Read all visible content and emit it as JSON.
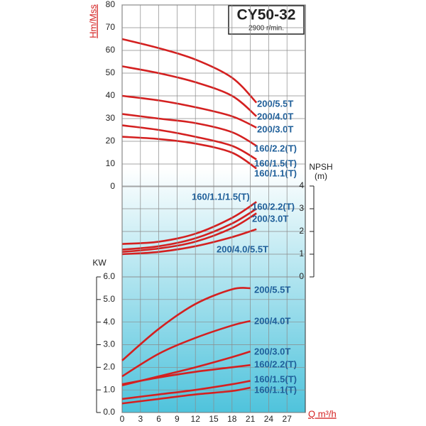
{
  "chart_data": [
    {
      "type": "line",
      "title": "CY50-32",
      "subtitle": "2900 r/min.",
      "y_label": "Hm/Mss",
      "xlim": [
        0,
        30
      ],
      "ylim": [
        0,
        80
      ],
      "yticks": [
        0,
        10,
        20,
        30,
        40,
        50,
        60,
        70,
        80
      ],
      "x": [
        0,
        6,
        12,
        18,
        22
      ],
      "series": [
        {
          "name": "200/5.5T",
          "color": "#d42020",
          "values": [
            65,
            61,
            56,
            48,
            37
          ]
        },
        {
          "name": "200/4.0T",
          "color": "#d42020",
          "values": [
            53,
            50,
            46,
            40,
            31
          ]
        },
        {
          "name": "200/3.0T",
          "color": "#d42020",
          "values": [
            40,
            38,
            35,
            31,
            26
          ]
        },
        {
          "name": "160/2.2(T)",
          "color": "#d42020",
          "values": [
            32,
            30,
            28,
            24,
            18
          ]
        },
        {
          "name": "160/1.5(T)",
          "color": "#d42020",
          "values": [
            27,
            25,
            22,
            18,
            12
          ]
        },
        {
          "name": "160/1.1(T)",
          "color": "#d42020",
          "values": [
            22,
            21,
            19,
            15,
            8
          ]
        }
      ]
    },
    {
      "type": "line",
      "y2_label": "NPSH",
      "y2_unit": "(m)",
      "xlim": [
        0,
        30
      ],
      "y2lim": [
        0,
        4
      ],
      "y2ticks": [
        0,
        1,
        2,
        3,
        4
      ],
      "x": [
        0,
        6,
        12,
        18,
        22
      ],
      "series": [
        {
          "name": "160/1.1/1.5(T)",
          "color": "#d42020",
          "axis": "y2",
          "values": [
            1.45,
            1.55,
            1.9,
            2.6,
            3.3
          ]
        },
        {
          "name": "160/2.2(T)",
          "color": "#d42020",
          "axis": "y2",
          "values": [
            1.2,
            1.35,
            1.7,
            2.35,
            3.0
          ]
        },
        {
          "name": "200/3.0T",
          "color": "#d42020",
          "axis": "y2",
          "values": [
            1.1,
            1.25,
            1.55,
            2.15,
            2.8
          ]
        },
        {
          "name": "200/4.0/5.5T",
          "color": "#d42020",
          "axis": "y2",
          "values": [
            1.0,
            1.1,
            1.35,
            1.75,
            2.1
          ]
        }
      ]
    },
    {
      "type": "line",
      "y_label": "KW",
      "x_label": "Q m³/h",
      "xlim": [
        0,
        30
      ],
      "xticks": [
        0,
        3,
        6,
        9,
        12,
        15,
        18,
        21,
        24,
        27
      ],
      "ylim": [
        0,
        6
      ],
      "yticks": [
        {
          "value": 0,
          "label": "0.0"
        },
        {
          "value": 1,
          "label": "1.0"
        },
        {
          "value": 2,
          "label": "2.0"
        },
        {
          "value": 3,
          "label": "3.0"
        },
        {
          "value": 4,
          "label": "4.0"
        },
        {
          "value": 5,
          "label": "5.0"
        },
        {
          "value": 6,
          "label": "6.0"
        }
      ],
      "x": [
        0,
        6,
        12,
        18,
        21
      ],
      "series": [
        {
          "name": "200/5.5T",
          "color": "#d42020",
          "values": [
            2.3,
            3.7,
            4.8,
            5.45,
            5.5
          ]
        },
        {
          "name": "200/4.0T",
          "color": "#d42020",
          "values": [
            1.6,
            2.6,
            3.3,
            3.85,
            4.05
          ]
        },
        {
          "name": "200/3.0T",
          "color": "#d42020",
          "values": [
            1.2,
            1.6,
            2.0,
            2.45,
            2.7
          ]
        },
        {
          "name": "160/2.2(T)",
          "color": "#d42020",
          "values": [
            1.25,
            1.55,
            1.8,
            2.0,
            2.1
          ]
        },
        {
          "name": "160/1.5(T)",
          "color": "#d42020",
          "values": [
            0.6,
            0.8,
            1.0,
            1.25,
            1.4
          ]
        },
        {
          "name": "160/1.1(T)",
          "color": "#d42020",
          "values": [
            0.4,
            0.6,
            0.8,
            0.95,
            1.1
          ]
        }
      ]
    }
  ]
}
